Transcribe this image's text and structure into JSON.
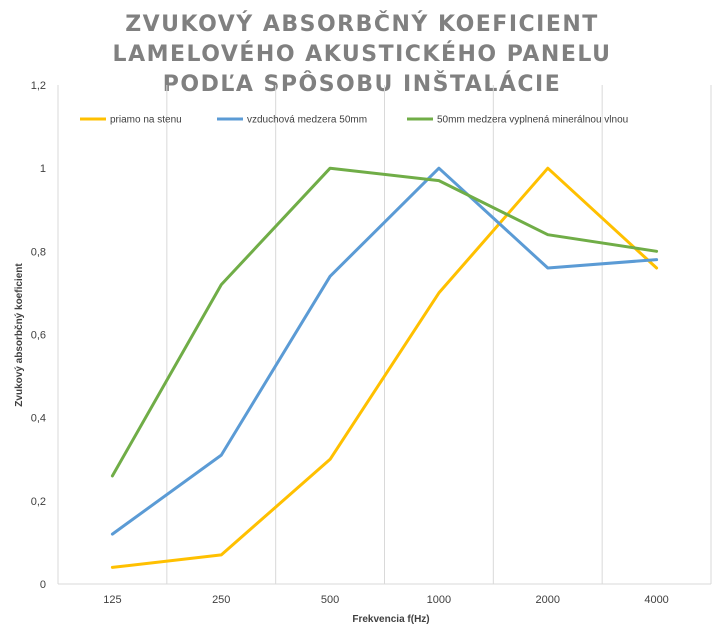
{
  "chart_data": {
    "type": "line",
    "title_lines": [
      "ZVUKOVÝ ABSORBČNÝ KOEFICIENT",
      "LAMELOVÉHO AKUSTICKÉHO PANELU",
      "PODĽA SPÔSOBU INŠTALÁCIE"
    ],
    "xlabel": "Frekvencia f(Hz)",
    "ylabel": "Zvukový absorbčný koeficient",
    "categories": [
      "125",
      "250",
      "500",
      "1000",
      "2000",
      "4000"
    ],
    "ylim": [
      0,
      1.2
    ],
    "y_ticks": [
      "0",
      "0,2",
      "0,4",
      "0,6",
      "0,8",
      "1",
      "1,2"
    ],
    "grid": "vertical",
    "legend_position": "top",
    "series": [
      {
        "name": "priamo na stenu",
        "color": "#FFC000",
        "values": [
          0.04,
          0.07,
          0.3,
          0.7,
          1.0,
          0.76
        ]
      },
      {
        "name": "vzduchová medzera 50mm",
        "color": "#5B9BD5",
        "values": [
          0.12,
          0.31,
          0.74,
          1.0,
          0.76,
          0.78
        ]
      },
      {
        "name": "50mm medzera vyplnená minerálnou vlnou",
        "color": "#70AD47",
        "values": [
          0.26,
          0.72,
          1.0,
          0.97,
          0.84,
          0.8
        ]
      }
    ]
  }
}
